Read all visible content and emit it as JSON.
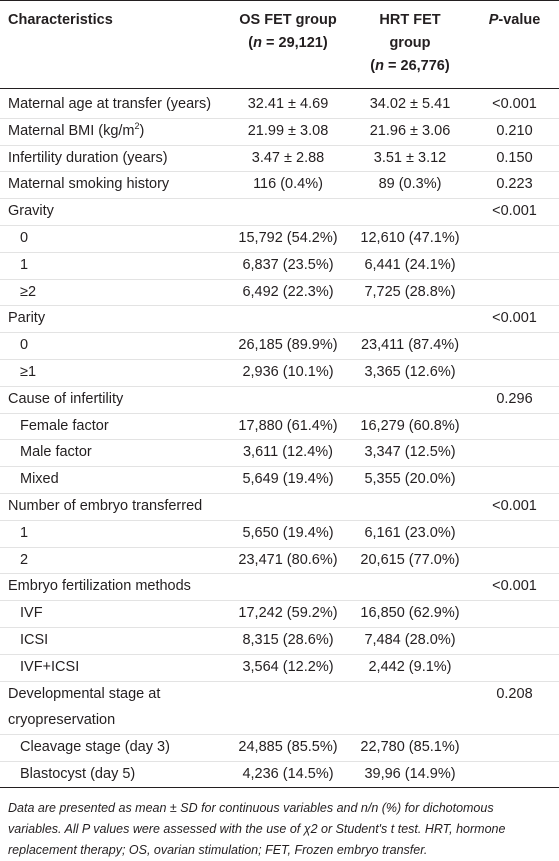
{
  "table": {
    "header": [
      {
        "lines": [
          "Characteristics"
        ]
      },
      {
        "lines": [
          "OS FET group",
          [
            {
              "text": "("
            },
            {
              "text": "n",
              "italic": true
            },
            {
              "text": " = 29,121)"
            }
          ]
        ]
      },
      {
        "lines": [
          "HRT FET",
          "group",
          [
            {
              "text": "("
            },
            {
              "text": "n",
              "italic": true
            },
            {
              "text": " = 26,776)"
            }
          ]
        ]
      },
      {
        "lines": [
          [
            {
              "text": "P",
              "italic": true
            },
            {
              "text": "-value"
            }
          ]
        ]
      }
    ],
    "rows": [
      {
        "label": "Maternal age at transfer (years)",
        "os": "32.41 ± 4.69",
        "hrt": "34.02 ± 5.41",
        "p": "<0.001"
      },
      {
        "label": [
          {
            "text": "Maternal BMI (kg/m"
          },
          {
            "text": "2",
            "sup": true
          },
          {
            "text": ")"
          }
        ],
        "os": "21.99 ± 3.08",
        "hrt": "21.96 ± 3.06",
        "p": "0.210"
      },
      {
        "label": "Infertility duration (years)",
        "os": "3.47 ± 2.88",
        "hrt": "3.51 ± 3.12",
        "p": "0.150"
      },
      {
        "label": "Maternal smoking history",
        "os": "116 (0.4%)",
        "hrt": "89 (0.3%)",
        "p": "0.223"
      },
      {
        "label": "Gravity",
        "p": "<0.001"
      },
      {
        "label": "0",
        "indent": true,
        "os": "15,792 (54.2%)",
        "hrt": "12,610 (47.1%)"
      },
      {
        "label": "1",
        "indent": true,
        "os": "6,837 (23.5%)",
        "hrt": "6,441 (24.1%)"
      },
      {
        "label": "≥2",
        "indent": true,
        "os": "6,492 (22.3%)",
        "hrt": "7,725 (28.8%)"
      },
      {
        "label": "Parity",
        "p": "<0.001"
      },
      {
        "label": "0",
        "indent": true,
        "os": "26,185 (89.9%)",
        "hrt": "23,411 (87.4%)"
      },
      {
        "label": "≥1",
        "indent": true,
        "os": "2,936 (10.1%)",
        "hrt": "3,365 (12.6%)"
      },
      {
        "label": "Cause of infertility",
        "p": "0.296"
      },
      {
        "label": "Female factor",
        "indent": true,
        "os": "17,880 (61.4%)",
        "hrt": "16,279 (60.8%)"
      },
      {
        "label": "Male factor",
        "indent": true,
        "os": "3,611 (12.4%)",
        "hrt": "3,347 (12.5%)"
      },
      {
        "label": "Mixed",
        "indent": true,
        "os": "5,649 (19.4%)",
        "hrt": "5,355 (20.0%)"
      },
      {
        "label": "Number of embryo transferred",
        "p": "<0.001"
      },
      {
        "label": "1",
        "indent": true,
        "os": "5,650 (19.4%)",
        "hrt": "6,161 (23.0%)"
      },
      {
        "label": "2",
        "indent": true,
        "os": "23,471 (80.6%)",
        "hrt": "20,615 (77.0%)"
      },
      {
        "label": "Embryo fertilization methods",
        "p": "<0.001"
      },
      {
        "label": "IVF",
        "indent": true,
        "os": "17,242 (59.2%)",
        "hrt": "16,850 (62.9%)"
      },
      {
        "label": "ICSI",
        "indent": true,
        "os": "8,315 (28.6%)",
        "hrt": "7,484 (28.0%)"
      },
      {
        "label": "IVF+ICSI",
        "indent": true,
        "os": "3,564 (12.2%)",
        "hrt": "2,442 (9.1%)"
      },
      {
        "label": [
          "Developmental stage at",
          "cryopreservation"
        ],
        "p": "0.208"
      },
      {
        "label": "Cleavage stage (day 3)",
        "indent": true,
        "os": "24,885 (85.5%)",
        "hrt": "22,780 (85.1%)"
      },
      {
        "label": "Blastocyst (day 5)",
        "indent": true,
        "os": "4,236 (14.5%)",
        "hrt": "39,96 (14.9%)"
      }
    ],
    "footnote": [
      "Data are presented as mean ± SD for continuous variables and n/n (%) for dichotomous",
      "variables. All P values were assessed with the use of χ2 or Student's t test. HRT, hormone",
      "replacement therapy; OS, ovarian stimulation; FET, Frozen embryo transfer."
    ]
  }
}
